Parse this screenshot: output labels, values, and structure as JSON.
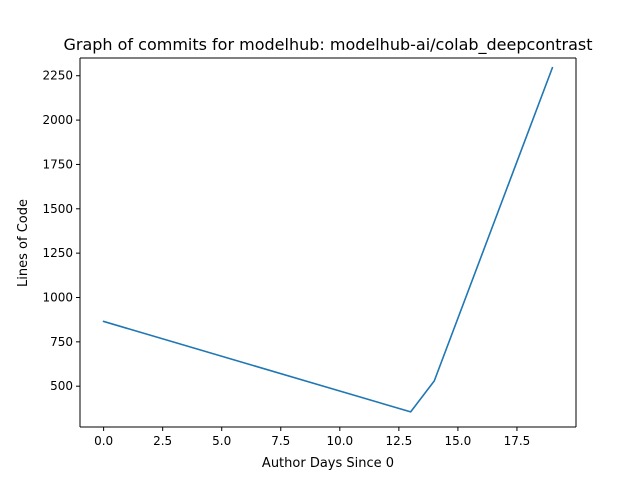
{
  "chart_data": {
    "type": "line",
    "title": "Graph of commits for modelhub: modelhub-ai/colab_deepcontrast",
    "xlabel": "Author Days Since 0",
    "ylabel": "Lines of Code",
    "xlim": [
      -1,
      20
    ],
    "ylim": [
      270,
      2350
    ],
    "xticks": [
      0,
      2.5,
      5,
      7.5,
      10,
      12.5,
      15,
      17.5
    ],
    "xtick_labels": [
      "0.0",
      "2.5",
      "5.0",
      "7.5",
      "10.0",
      "12.5",
      "15.0",
      "17.5"
    ],
    "yticks": [
      500,
      750,
      1000,
      1250,
      1500,
      1750,
      2000,
      2250
    ],
    "ytick_labels": [
      "500",
      "750",
      "1000",
      "1250",
      "1500",
      "1750",
      "2000",
      "2250"
    ],
    "grid": false,
    "series": [
      {
        "color": "#1f77b4",
        "x": [
          0,
          13,
          14,
          19
        ],
        "y": [
          865,
          355,
          530,
          2295
        ]
      }
    ]
  }
}
